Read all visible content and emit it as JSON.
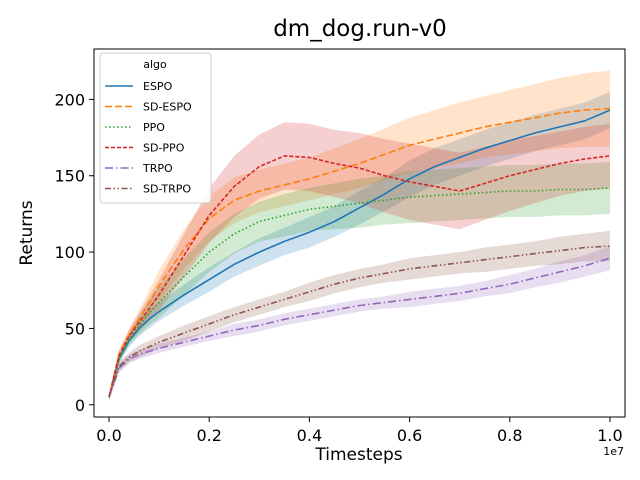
{
  "chart_data": {
    "type": "line",
    "title": "dm_dog.run-v0",
    "xlabel": "Timesteps",
    "ylabel": "Returns",
    "x_offset_label": "1e7",
    "xlim": [
      -0.03,
      1.03
    ],
    "ylim": [
      -8,
      233
    ],
    "x_ticks": [
      0.0,
      0.2,
      0.4,
      0.6,
      0.8,
      1.0
    ],
    "x_tick_labels": [
      "0.0",
      "0.2",
      "0.4",
      "0.6",
      "0.8",
      "1.0"
    ],
    "y_ticks": [
      0,
      50,
      100,
      150,
      200
    ],
    "y_tick_labels": [
      "0",
      "50",
      "100",
      "150",
      "200"
    ],
    "legend": {
      "title": "algo",
      "placement": "top-left"
    },
    "series": [
      {
        "name": "ESPO",
        "color": "#1f77b4",
        "dash": "solid",
        "x": [
          0,
          0.02,
          0.04,
          0.06,
          0.08,
          0.1,
          0.15,
          0.2,
          0.25,
          0.3,
          0.35,
          0.4,
          0.45,
          0.5,
          0.55,
          0.6,
          0.65,
          0.7,
          0.75,
          0.8,
          0.85,
          0.9,
          0.95,
          1.0
        ],
        "y": [
          5,
          30,
          42,
          50,
          56,
          61,
          72,
          82,
          92,
          100,
          107,
          113,
          120,
          129,
          138,
          148,
          156,
          162,
          168,
          173,
          178,
          182,
          186,
          193
        ],
        "band": [
          2,
          3,
          4,
          5,
          6,
          6,
          7,
          8,
          8,
          9,
          9,
          10,
          10,
          11,
          11,
          12,
          12,
          12,
          12,
          12,
          12,
          12,
          12,
          12
        ]
      },
      {
        "name": "SD-ESPO",
        "color": "#ff7f0e",
        "dash": "dashed",
        "x": [
          0,
          0.02,
          0.04,
          0.06,
          0.08,
          0.1,
          0.15,
          0.2,
          0.25,
          0.3,
          0.35,
          0.4,
          0.45,
          0.5,
          0.55,
          0.6,
          0.65,
          0.7,
          0.75,
          0.8,
          0.85,
          0.9,
          0.95,
          1.0
        ],
        "y": [
          5,
          33,
          46,
          56,
          67,
          78,
          102,
          122,
          134,
          140,
          144,
          148,
          153,
          158,
          164,
          170,
          174,
          178,
          182,
          185,
          188,
          191,
          193,
          194
        ],
        "band": [
          2,
          3,
          4,
          6,
          8,
          10,
          13,
          15,
          15,
          14,
          14,
          14,
          15,
          16,
          17,
          18,
          19,
          20,
          20,
          21,
          22,
          23,
          24,
          25
        ]
      },
      {
        "name": "PPO",
        "color": "#2ca02c",
        "dash": "dotted",
        "x": [
          0,
          0.02,
          0.04,
          0.06,
          0.08,
          0.1,
          0.15,
          0.2,
          0.25,
          0.3,
          0.35,
          0.4,
          0.45,
          0.5,
          0.55,
          0.6,
          0.65,
          0.7,
          0.75,
          0.8,
          0.85,
          0.9,
          0.95,
          1.0
        ],
        "y": [
          5,
          30,
          43,
          52,
          60,
          67,
          84,
          100,
          112,
          120,
          124,
          128,
          130,
          132,
          134,
          136,
          137,
          138,
          139,
          140,
          140,
          141,
          141,
          142
        ],
        "band": [
          2,
          3,
          4,
          6,
          8,
          10,
          12,
          13,
          13,
          13,
          14,
          14,
          15,
          16,
          16,
          17,
          17,
          17,
          17,
          17,
          17,
          17,
          17,
          17
        ]
      },
      {
        "name": "SD-PPO",
        "color": "#d62728",
        "dash": "dashed-short",
        "x": [
          0,
          0.02,
          0.04,
          0.06,
          0.08,
          0.1,
          0.15,
          0.2,
          0.25,
          0.3,
          0.35,
          0.4,
          0.45,
          0.5,
          0.55,
          0.6,
          0.65,
          0.7,
          0.75,
          0.8,
          0.85,
          0.9,
          0.95,
          1.0
        ],
        "y": [
          5,
          32,
          45,
          54,
          63,
          72,
          98,
          124,
          143,
          156,
          163,
          162,
          158,
          155,
          150,
          146,
          143,
          140,
          145,
          150,
          154,
          158,
          161,
          163
        ],
        "band": [
          2,
          3,
          4,
          6,
          8,
          10,
          14,
          18,
          20,
          21,
          22,
          22,
          22,
          23,
          24,
          25,
          25,
          25,
          24,
          23,
          22,
          21,
          21,
          21
        ]
      },
      {
        "name": "TRPO",
        "color": "#9467bd",
        "dash": "dashdot",
        "x": [
          0,
          0.02,
          0.04,
          0.06,
          0.08,
          0.1,
          0.15,
          0.2,
          0.25,
          0.3,
          0.35,
          0.4,
          0.45,
          0.5,
          0.55,
          0.6,
          0.65,
          0.7,
          0.75,
          0.8,
          0.85,
          0.9,
          0.95,
          1.0
        ],
        "y": [
          5,
          24,
          30,
          33,
          35,
          37,
          41,
          45,
          49,
          52,
          56,
          59,
          62,
          65,
          67,
          69,
          71,
          73,
          76,
          79,
          83,
          87,
          91,
          96
        ],
        "band": [
          2,
          3,
          3,
          3,
          3,
          3,
          3,
          3,
          4,
          4,
          4,
          4,
          4,
          4,
          4,
          5,
          5,
          5,
          5,
          6,
          6,
          7,
          7,
          8
        ]
      },
      {
        "name": "SD-TRPO",
        "color": "#8c564b",
        "dash": "dashdotdot",
        "x": [
          0,
          0.02,
          0.04,
          0.06,
          0.08,
          0.1,
          0.15,
          0.2,
          0.25,
          0.3,
          0.35,
          0.4,
          0.45,
          0.5,
          0.55,
          0.6,
          0.65,
          0.7,
          0.75,
          0.8,
          0.85,
          0.9,
          0.95,
          1.0
        ],
        "y": [
          5,
          25,
          31,
          35,
          38,
          41,
          47,
          53,
          59,
          64,
          69,
          74,
          79,
          83,
          86,
          89,
          91,
          93,
          95,
          97,
          99,
          101,
          103,
          104
        ],
        "band": [
          2,
          3,
          3,
          4,
          4,
          4,
          5,
          5,
          5,
          5,
          5,
          6,
          6,
          6,
          6,
          7,
          7,
          7,
          8,
          8,
          8,
          9,
          9,
          10
        ]
      }
    ]
  }
}
